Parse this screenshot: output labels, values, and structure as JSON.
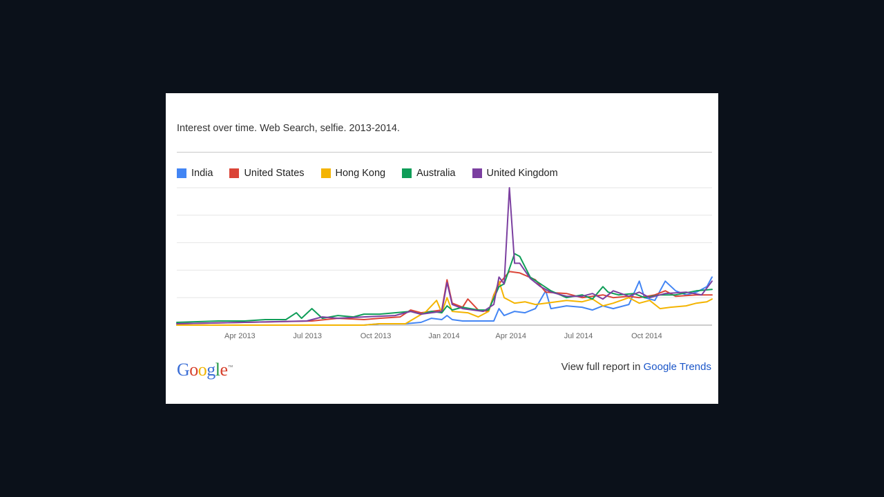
{
  "header": {
    "title": "Interest over time. Web Search, selfie. 2013-2014."
  },
  "footer": {
    "logo_letters": [
      "G",
      "o",
      "o",
      "g",
      "l",
      "e"
    ],
    "logo_colors": [
      "#3c6fd6",
      "#d6402c",
      "#f0b400",
      "#3c6fd6",
      "#249944",
      "#d6402c"
    ],
    "logo_tm": "™",
    "report_prefix": "View full report in",
    "report_link": "Google Trends"
  },
  "chart_data": {
    "type": "line",
    "title": "Interest over time. Web Search, selfie. 2013-2014.",
    "xlabel": "",
    "ylabel": "",
    "ylim": [
      0,
      100
    ],
    "xlim": [
      "2013-01-06",
      "2014-12-28"
    ],
    "grid": true,
    "legend_position": "top-left",
    "x_ticks": [
      {
        "date": "2013-04-01",
        "label": "Apr 2013"
      },
      {
        "date": "2013-07-01",
        "label": "Jul 2013"
      },
      {
        "date": "2013-10-01",
        "label": "Oct 2013"
      },
      {
        "date": "2014-01-01",
        "label": "Jan 2014"
      },
      {
        "date": "2014-04-01",
        "label": "Apr 2014"
      },
      {
        "date": "2014-07-01",
        "label": "Jul 2014"
      },
      {
        "date": "2014-10-01",
        "label": "Oct 2014"
      }
    ],
    "series": [
      {
        "name": "India",
        "color": "#4285f4",
        "points": [
          [
            "2013-01-06",
            0
          ],
          [
            "2013-04-07",
            0
          ],
          [
            "2013-07-07",
            0
          ],
          [
            "2013-09-15",
            0
          ],
          [
            "2013-10-06",
            1
          ],
          [
            "2013-11-10",
            1
          ],
          [
            "2013-12-01",
            2
          ],
          [
            "2013-12-15",
            5
          ],
          [
            "2013-12-29",
            4
          ],
          [
            "2014-01-05",
            7
          ],
          [
            "2014-01-12",
            4
          ],
          [
            "2014-01-26",
            3
          ],
          [
            "2014-02-16",
            3
          ],
          [
            "2014-03-09",
            3
          ],
          [
            "2014-03-16",
            12
          ],
          [
            "2014-03-23",
            7
          ],
          [
            "2014-04-06",
            10
          ],
          [
            "2014-04-20",
            9
          ],
          [
            "2014-05-04",
            12
          ],
          [
            "2014-05-18",
            25
          ],
          [
            "2014-05-25",
            12
          ],
          [
            "2014-06-15",
            14
          ],
          [
            "2014-07-06",
            13
          ],
          [
            "2014-07-20",
            11
          ],
          [
            "2014-08-03",
            14
          ],
          [
            "2014-08-17",
            12
          ],
          [
            "2014-09-07",
            15
          ],
          [
            "2014-09-21",
            32
          ],
          [
            "2014-09-28",
            20
          ],
          [
            "2014-10-12",
            18
          ],
          [
            "2014-10-26",
            32
          ],
          [
            "2014-11-09",
            25
          ],
          [
            "2014-11-23",
            22
          ],
          [
            "2014-12-07",
            24
          ],
          [
            "2014-12-21",
            28
          ],
          [
            "2014-12-28",
            35
          ]
        ]
      },
      {
        "name": "United States",
        "color": "#db4437",
        "points": [
          [
            "2013-01-06",
            1
          ],
          [
            "2013-04-07",
            2
          ],
          [
            "2013-07-07",
            3
          ],
          [
            "2013-08-11",
            5
          ],
          [
            "2013-09-15",
            4
          ],
          [
            "2013-10-06",
            5
          ],
          [
            "2013-11-03",
            6
          ],
          [
            "2013-11-17",
            11
          ],
          [
            "2013-12-01",
            9
          ],
          [
            "2013-12-15",
            10
          ],
          [
            "2013-12-29",
            11
          ],
          [
            "2014-01-05",
            33
          ],
          [
            "2014-01-12",
            16
          ],
          [
            "2014-01-26",
            13
          ],
          [
            "2014-02-02",
            19
          ],
          [
            "2014-02-16",
            11
          ],
          [
            "2014-03-02",
            10
          ],
          [
            "2014-03-09",
            22
          ],
          [
            "2014-03-16",
            30
          ],
          [
            "2014-03-30",
            39
          ],
          [
            "2014-04-13",
            38
          ],
          [
            "2014-05-04",
            33
          ],
          [
            "2014-05-18",
            24
          ],
          [
            "2014-06-15",
            23
          ],
          [
            "2014-07-06",
            20
          ],
          [
            "2014-08-03",
            22
          ],
          [
            "2014-08-17",
            20
          ],
          [
            "2014-09-07",
            21
          ],
          [
            "2014-09-21",
            20
          ],
          [
            "2014-10-12",
            22
          ],
          [
            "2014-10-26",
            25
          ],
          [
            "2014-11-09",
            21
          ],
          [
            "2014-12-07",
            22
          ],
          [
            "2014-12-28",
            22
          ]
        ]
      },
      {
        "name": "Hong Kong",
        "color": "#f4b400",
        "points": [
          [
            "2013-01-06",
            0
          ],
          [
            "2013-04-07",
            0
          ],
          [
            "2013-07-07",
            0
          ],
          [
            "2013-09-15",
            0
          ],
          [
            "2013-10-06",
            1
          ],
          [
            "2013-11-10",
            1
          ],
          [
            "2013-12-08",
            10
          ],
          [
            "2013-12-22",
            18
          ],
          [
            "2013-12-29",
            9
          ],
          [
            "2014-01-05",
            20
          ],
          [
            "2014-01-12",
            10
          ],
          [
            "2014-02-02",
            9
          ],
          [
            "2014-02-16",
            6
          ],
          [
            "2014-03-02",
            10
          ],
          [
            "2014-03-16",
            32
          ],
          [
            "2014-03-23",
            20
          ],
          [
            "2014-04-06",
            16
          ],
          [
            "2014-04-20",
            17
          ],
          [
            "2014-05-04",
            15
          ],
          [
            "2014-05-18",
            16
          ],
          [
            "2014-06-15",
            18
          ],
          [
            "2014-07-06",
            17
          ],
          [
            "2014-07-20",
            19
          ],
          [
            "2014-08-03",
            14
          ],
          [
            "2014-08-17",
            16
          ],
          [
            "2014-09-07",
            20
          ],
          [
            "2014-09-21",
            16
          ],
          [
            "2014-10-05",
            18
          ],
          [
            "2014-10-19",
            12
          ],
          [
            "2014-11-02",
            13
          ],
          [
            "2014-11-23",
            14
          ],
          [
            "2014-12-07",
            16
          ],
          [
            "2014-12-21",
            17
          ],
          [
            "2014-12-28",
            19
          ]
        ]
      },
      {
        "name": "Australia",
        "color": "#0f9d58",
        "points": [
          [
            "2013-01-06",
            2
          ],
          [
            "2013-03-03",
            3
          ],
          [
            "2013-04-07",
            3
          ],
          [
            "2013-05-05",
            4
          ],
          [
            "2013-06-02",
            4
          ],
          [
            "2013-06-16",
            9
          ],
          [
            "2013-06-23",
            5
          ],
          [
            "2013-07-07",
            12
          ],
          [
            "2013-07-21",
            5
          ],
          [
            "2013-08-11",
            7
          ],
          [
            "2013-09-01",
            6
          ],
          [
            "2013-09-15",
            8
          ],
          [
            "2013-10-06",
            8
          ],
          [
            "2013-10-27",
            9
          ],
          [
            "2013-11-17",
            10
          ],
          [
            "2013-12-01",
            8
          ],
          [
            "2013-12-15",
            10
          ],
          [
            "2013-12-29",
            9
          ],
          [
            "2014-01-05",
            14
          ],
          [
            "2014-01-12",
            11
          ],
          [
            "2014-01-26",
            13
          ],
          [
            "2014-02-16",
            11
          ],
          [
            "2014-03-02",
            11
          ],
          [
            "2014-03-16",
            28
          ],
          [
            "2014-03-23",
            30
          ],
          [
            "2014-04-06",
            52
          ],
          [
            "2014-04-13",
            50
          ],
          [
            "2014-04-27",
            35
          ],
          [
            "2014-05-11",
            30
          ],
          [
            "2014-05-25",
            25
          ],
          [
            "2014-06-15",
            20
          ],
          [
            "2014-07-06",
            22
          ],
          [
            "2014-07-20",
            19
          ],
          [
            "2014-08-03",
            28
          ],
          [
            "2014-08-10",
            24
          ],
          [
            "2014-08-24",
            22
          ],
          [
            "2014-09-14",
            23
          ],
          [
            "2014-09-28",
            20
          ],
          [
            "2014-10-19",
            22
          ],
          [
            "2014-11-09",
            22
          ],
          [
            "2014-12-07",
            25
          ],
          [
            "2014-12-28",
            26
          ]
        ]
      },
      {
        "name": "United Kingdom",
        "color": "#7b3fa0",
        "points": [
          [
            "2013-01-06",
            1
          ],
          [
            "2013-04-07",
            2
          ],
          [
            "2013-06-30",
            3
          ],
          [
            "2013-07-21",
            6
          ],
          [
            "2013-08-11",
            5
          ],
          [
            "2013-09-15",
            6
          ],
          [
            "2013-10-27",
            7
          ],
          [
            "2013-11-17",
            10
          ],
          [
            "2013-12-01",
            8
          ],
          [
            "2013-12-15",
            9
          ],
          [
            "2013-12-29",
            10
          ],
          [
            "2014-01-05",
            31
          ],
          [
            "2014-01-12",
            15
          ],
          [
            "2014-01-26",
            12
          ],
          [
            "2014-02-09",
            11
          ],
          [
            "2014-02-23",
            10
          ],
          [
            "2014-03-09",
            15
          ],
          [
            "2014-03-16",
            35
          ],
          [
            "2014-03-23",
            30
          ],
          [
            "2014-03-30",
            100
          ],
          [
            "2014-04-06",
            45
          ],
          [
            "2014-04-13",
            45
          ],
          [
            "2014-04-27",
            34
          ],
          [
            "2014-05-11",
            28
          ],
          [
            "2014-05-25",
            24
          ],
          [
            "2014-06-15",
            21
          ],
          [
            "2014-07-06",
            21
          ],
          [
            "2014-07-20",
            23
          ],
          [
            "2014-08-03",
            19
          ],
          [
            "2014-08-17",
            25
          ],
          [
            "2014-09-07",
            21
          ],
          [
            "2014-09-21",
            24
          ],
          [
            "2014-10-05",
            20
          ],
          [
            "2014-10-26",
            23
          ],
          [
            "2014-11-23",
            24
          ],
          [
            "2014-12-14",
            22
          ],
          [
            "2014-12-28",
            32
          ]
        ]
      }
    ]
  }
}
